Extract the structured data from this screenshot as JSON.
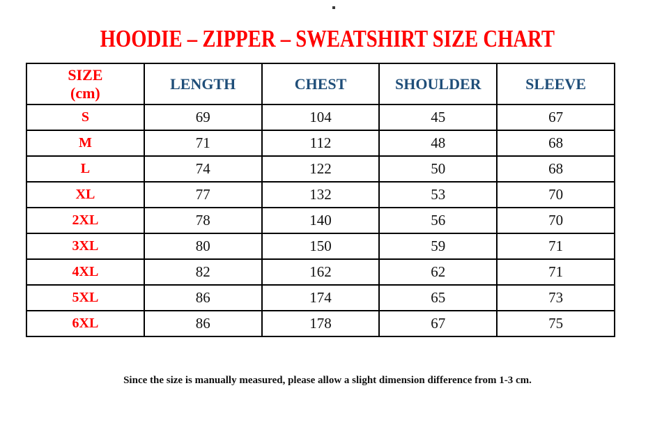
{
  "title": {
    "text": "HOODIE – ZIPPER – SWEATSHIRT SIZE CHART",
    "color": "#ff0000"
  },
  "colors": {
    "accent_red": "#ff0000",
    "header_blue": "#1f4e79",
    "border": "#000000",
    "text": "#111111",
    "background": "#ffffff"
  },
  "table": {
    "unit_note": "cm",
    "columns": [
      {
        "key": "size",
        "label": "SIZE\n(cm)",
        "accent": "red"
      },
      {
        "key": "length",
        "label": "LENGTH",
        "accent": "blue"
      },
      {
        "key": "chest",
        "label": "CHEST",
        "accent": "blue"
      },
      {
        "key": "shoulder",
        "label": "SHOULDER",
        "accent": "blue"
      },
      {
        "key": "sleeve",
        "label": "SLEEVE",
        "accent": "blue"
      }
    ],
    "rows": [
      {
        "size": "S",
        "values": [
          "69",
          "104",
          "45",
          "67"
        ]
      },
      {
        "size": "M",
        "values": [
          "71",
          "112",
          "48",
          "68"
        ]
      },
      {
        "size": "L",
        "values": [
          "74",
          "122",
          "50",
          "68"
        ]
      },
      {
        "size": "XL",
        "values": [
          "77",
          "132",
          "53",
          "70"
        ]
      },
      {
        "size": "2XL",
        "values": [
          "78",
          "140",
          "56",
          "70"
        ]
      },
      {
        "size": "3XL",
        "values": [
          "80",
          "150",
          "59",
          "71"
        ]
      },
      {
        "size": "4XL",
        "values": [
          "82",
          "162",
          "62",
          "71"
        ]
      },
      {
        "size": "5XL",
        "values": [
          "86",
          "174",
          "65",
          "73"
        ]
      },
      {
        "size": "6XL",
        "values": [
          "86",
          "178",
          "67",
          "75"
        ]
      }
    ]
  },
  "footnote": {
    "text": "Since the size is manually measured, please allow a slight dimension difference from 1-3 cm."
  }
}
